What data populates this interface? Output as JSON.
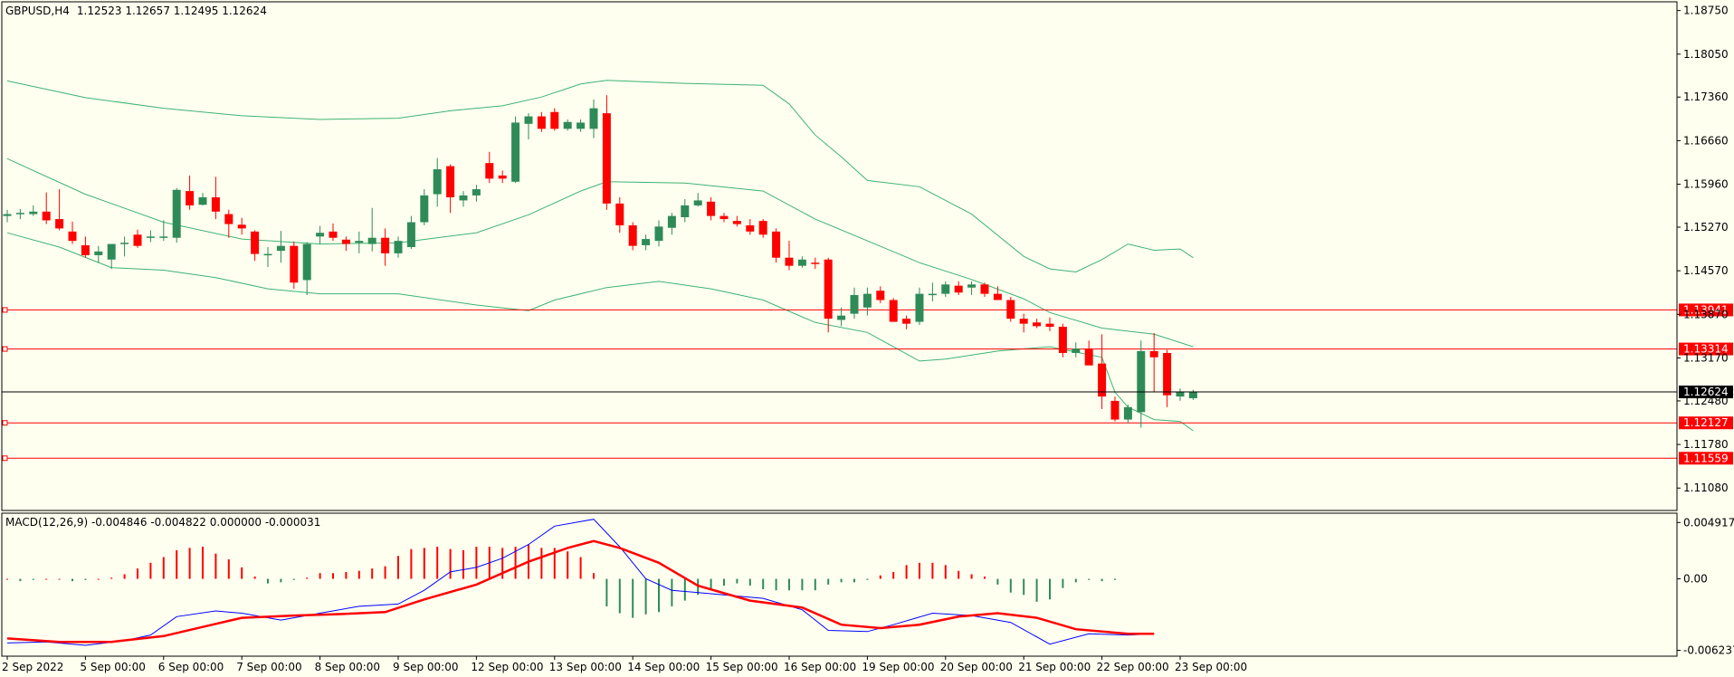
{
  "header": {
    "symbol": "GBPUSD,H4",
    "ohlc": "1.12523 1.12657 1.12495 1.12624"
  },
  "macd_header": "MACD(12,26,9) -0.004846 -0.004822 0.000000 -0.000031",
  "price_axis": {
    "ticks": [
      "1.18750",
      "1.18050",
      "1.17360",
      "1.16660",
      "1.15960",
      "1.15270",
      "1.14570",
      "1.13870",
      "1.13170",
      "1.12480",
      "1.11780",
      "1.11080"
    ],
    "tick_values": [
      1.1875,
      1.1805,
      1.1736,
      1.1666,
      1.1596,
      1.1527,
      1.1457,
      1.1387,
      1.1317,
      1.1248,
      1.1178,
      1.1108
    ],
    "min": 1.1072,
    "max": 1.1889
  },
  "levels": [
    {
      "label": "1.13941",
      "value": 1.13941,
      "color": "#ff0000"
    },
    {
      "label": "1.13314",
      "value": 1.13314,
      "color": "#ff0000"
    },
    {
      "label": "1.12127",
      "value": 1.12127,
      "color": "#ff0000"
    },
    {
      "label": "1.11559",
      "value": 1.11559,
      "color": "#ff0000"
    }
  ],
  "current_price": {
    "label": "1.12624",
    "value": 1.12624
  },
  "macd_axis": {
    "ticks": [
      "0.004917",
      "0.00",
      "-0.006237"
    ],
    "tick_values": [
      0.004917,
      0.0,
      -0.006237
    ],
    "min": -0.00675,
    "max": 0.00573
  },
  "time_axis": [
    "2 Sep 2022",
    "5 Sep 00:00",
    "6 Sep 00:00",
    "7 Sep 00:00",
    "8 Sep 00:00",
    "9 Sep 00:00",
    "12 Sep 00:00",
    "13 Sep 00:00",
    "14 Sep 00:00",
    "15 Sep 00:00",
    "16 Sep 00:00",
    "19 Sep 00:00",
    "20 Sep 00:00",
    "21 Sep 00:00",
    "22 Sep 00:00",
    "23 Sep 00:00"
  ],
  "time_axis_bar_index": [
    0,
    6,
    12,
    18,
    24,
    30,
    36,
    42,
    48,
    54,
    60,
    66,
    72,
    78,
    84,
    90
  ],
  "colors": {
    "background": "#fffff0",
    "bull": "#2e8b57",
    "bear": "#ff0000",
    "bands": "#3cb371",
    "macd_main": "#0000ff",
    "macd_signal": "#ff0000",
    "level_line": "#ff0000",
    "current_line": "#000000"
  },
  "chart_data": {
    "type": "candlestick",
    "series_ohlc": [
      [
        1.1545,
        1.1555,
        1.1535,
        1.1548
      ],
      [
        1.1549,
        1.1556,
        1.154,
        1.155
      ],
      [
        1.1548,
        1.1562,
        1.1545,
        1.1552
      ],
      [
        1.1552,
        1.1583,
        1.1532,
        1.1538
      ],
      [
        1.154,
        1.1588,
        1.1522,
        1.1525
      ],
      [
        1.152,
        1.1536,
        1.15,
        1.1505
      ],
      [
        1.1498,
        1.1512,
        1.1478,
        1.1482
      ],
      [
        1.1482,
        1.1497,
        1.147,
        1.1488
      ],
      [
        1.1475,
        1.1498,
        1.146,
        1.15
      ],
      [
        1.15,
        1.1512,
        1.148,
        1.1502
      ],
      [
        1.1515,
        1.1523,
        1.1494,
        1.1497
      ],
      [
        1.151,
        1.1522,
        1.1503,
        1.1512
      ],
      [
        1.151,
        1.1538,
        1.1505,
        1.1512
      ],
      [
        1.151,
        1.159,
        1.1502,
        1.1587
      ],
      [
        1.1585,
        1.161,
        1.1555,
        1.1562
      ],
      [
        1.1563,
        1.1582,
        1.1562,
        1.1575
      ],
      [
        1.1575,
        1.1608,
        1.154,
        1.1552
      ],
      [
        1.1548,
        1.1555,
        1.151,
        1.1532
      ],
      [
        1.1531,
        1.1542,
        1.1515,
        1.1525
      ],
      [
        1.152,
        1.1522,
        1.1473,
        1.1484
      ],
      [
        1.1484,
        1.1495,
        1.1463,
        1.1484
      ],
      [
        1.1489,
        1.1521,
        1.147,
        1.1497
      ],
      [
        1.1497,
        1.1504,
        1.1428,
        1.1438
      ],
      [
        1.1442,
        1.1503,
        1.1418,
        1.15
      ],
      [
        1.1512,
        1.1529,
        1.15,
        1.1518
      ],
      [
        1.152,
        1.1533,
        1.1505,
        1.151
      ],
      [
        1.1507,
        1.1512,
        1.1489,
        1.15
      ],
      [
        1.1502,
        1.152,
        1.1485,
        1.1505
      ],
      [
        1.15,
        1.1558,
        1.1488,
        1.151
      ],
      [
        1.151,
        1.1525,
        1.1465,
        1.1485
      ],
      [
        1.1485,
        1.1512,
        1.1478,
        1.1505
      ],
      [
        1.1495,
        1.1545,
        1.1492,
        1.1535
      ],
      [
        1.1535,
        1.1588,
        1.153,
        1.1578
      ],
      [
        1.158,
        1.1638,
        1.156,
        1.162
      ],
      [
        1.1625,
        1.1628,
        1.155,
        1.1575
      ],
      [
        1.157,
        1.1585,
        1.156,
        1.1578
      ],
      [
        1.1578,
        1.1595,
        1.1568,
        1.1588
      ],
      [
        1.163,
        1.1648,
        1.1598,
        1.1605
      ],
      [
        1.161,
        1.1618,
        1.1598,
        1.1605
      ],
      [
        1.16,
        1.1705,
        1.1598,
        1.1695
      ],
      [
        1.1693,
        1.171,
        1.1668,
        1.1705
      ],
      [
        1.1705,
        1.1712,
        1.168,
        1.1685
      ],
      [
        1.1712,
        1.1718,
        1.1682,
        1.1685
      ],
      [
        1.1685,
        1.17,
        1.1682,
        1.1696
      ],
      [
        1.1685,
        1.17,
        1.168,
        1.1695
      ],
      [
        1.1685,
        1.1732,
        1.167,
        1.1718
      ],
      [
        1.171,
        1.1739,
        1.1555,
        1.1565
      ],
      [
        1.1565,
        1.1575,
        1.1518,
        1.153
      ],
      [
        1.153,
        1.1535,
        1.149,
        1.1497
      ],
      [
        1.1498,
        1.1515,
        1.149,
        1.1508
      ],
      [
        1.1505,
        1.1538,
        1.1496,
        1.1528
      ],
      [
        1.1526,
        1.155,
        1.1515,
        1.1545
      ],
      [
        1.1543,
        1.1572,
        1.1535,
        1.1562
      ],
      [
        1.1562,
        1.1582,
        1.156,
        1.157
      ],
      [
        1.1568,
        1.1575,
        1.1538,
        1.1545
      ],
      [
        1.1545,
        1.155,
        1.1535,
        1.154
      ],
      [
        1.1537,
        1.1545,
        1.1528,
        1.1532
      ],
      [
        1.153,
        1.154,
        1.1515,
        1.152
      ],
      [
        1.1537,
        1.154,
        1.151,
        1.1515
      ],
      [
        1.152,
        1.1525,
        1.147,
        1.1478
      ],
      [
        1.1478,
        1.1505,
        1.1458,
        1.1465
      ],
      [
        1.1465,
        1.148,
        1.1462,
        1.1475
      ],
      [
        1.147,
        1.1478,
        1.146,
        1.1468
      ],
      [
        1.1475,
        1.1478,
        1.1358,
        1.138
      ],
      [
        1.1378,
        1.1398,
        1.1368,
        1.1385
      ],
      [
        1.1388,
        1.143,
        1.138,
        1.1418
      ],
      [
        1.1398,
        1.143,
        1.1385,
        1.142
      ],
      [
        1.1425,
        1.1432,
        1.1405,
        1.141
      ],
      [
        1.141,
        1.1413,
        1.138,
        1.1375
      ],
      [
        1.138,
        1.1385,
        1.1363,
        1.1372
      ],
      [
        1.1375,
        1.143,
        1.137,
        1.142
      ],
      [
        1.1418,
        1.1438,
        1.1408,
        1.142
      ],
      [
        1.142,
        1.144,
        1.1415,
        1.1435
      ],
      [
        1.1433,
        1.144,
        1.1418,
        1.1422
      ],
      [
        1.143,
        1.144,
        1.1418,
        1.1435
      ],
      [
        1.1435,
        1.1438,
        1.1415,
        1.142
      ],
      [
        1.142,
        1.1432,
        1.141,
        1.141
      ],
      [
        1.141,
        1.1415,
        1.1375,
        1.138
      ],
      [
        1.138,
        1.1388,
        1.1358,
        1.1372
      ],
      [
        1.1374,
        1.138,
        1.1365,
        1.1368
      ],
      [
        1.1372,
        1.1382,
        1.136,
        1.1367
      ],
      [
        1.1367,
        1.1372,
        1.1318,
        1.1325
      ],
      [
        1.1325,
        1.1342,
        1.1318,
        1.1332
      ],
      [
        1.1332,
        1.1345,
        1.1308,
        1.1305
      ],
      [
        1.1308,
        1.1355,
        1.1235,
        1.1255
      ],
      [
        1.1248,
        1.1255,
        1.1215,
        1.1218
      ],
      [
        1.1218,
        1.1242,
        1.1212,
        1.1238
      ],
      [
        1.123,
        1.1345,
        1.1205,
        1.1328
      ],
      [
        1.1328,
        1.1357,
        1.1262,
        1.1318
      ],
      [
        1.1325,
        1.133,
        1.1238,
        1.1257
      ],
      [
        1.1255,
        1.1268,
        1.1248,
        1.1262
      ],
      [
        1.12523,
        1.12657,
        1.12495,
        1.12624
      ]
    ],
    "bb_upper": [
      [
        0,
        1.1762
      ],
      [
        6,
        1.1735
      ],
      [
        12,
        1.1718
      ],
      [
        18,
        1.1706
      ],
      [
        24,
        1.17
      ],
      [
        30,
        1.1702
      ],
      [
        34,
        1.1714
      ],
      [
        38,
        1.1722
      ],
      [
        41,
        1.1736
      ],
      [
        44,
        1.1757
      ],
      [
        46,
        1.1763
      ],
      [
        52,
        1.1758
      ],
      [
        58,
        1.1755
      ],
      [
        60,
        1.1725
      ],
      [
        62,
        1.1675
      ],
      [
        64,
        1.164
      ],
      [
        66,
        1.1602
      ],
      [
        70,
        1.1592
      ],
      [
        74,
        1.1548
      ],
      [
        78,
        1.148
      ],
      [
        80,
        1.146
      ],
      [
        82,
        1.1455
      ],
      [
        84,
        1.1475
      ],
      [
        86,
        1.15
      ],
      [
        88,
        1.149
      ],
      [
        90,
        1.1492
      ],
      [
        91,
        1.1478
      ]
    ],
    "bb_middle": [
      [
        0,
        1.1637
      ],
      [
        6,
        1.158
      ],
      [
        12,
        1.1535
      ],
      [
        18,
        1.1508
      ],
      [
        24,
        1.15
      ],
      [
        30,
        1.1502
      ],
      [
        36,
        1.1518
      ],
      [
        40,
        1.1547
      ],
      [
        44,
        1.1585
      ],
      [
        46,
        1.16
      ],
      [
        52,
        1.1598
      ],
      [
        58,
        1.1585
      ],
      [
        62,
        1.154
      ],
      [
        66,
        1.1505
      ],
      [
        70,
        1.147
      ],
      [
        74,
        1.1443
      ],
      [
        78,
        1.1412
      ],
      [
        80,
        1.139
      ],
      [
        84,
        1.1365
      ],
      [
        86,
        1.136
      ],
      [
        88,
        1.1355
      ],
      [
        91,
        1.1335
      ]
    ],
    "bb_lower": [
      [
        0,
        1.1518
      ],
      [
        4,
        1.1495
      ],
      [
        8,
        1.1462
      ],
      [
        12,
        1.1458
      ],
      [
        16,
        1.1446
      ],
      [
        20,
        1.1428
      ],
      [
        24,
        1.142
      ],
      [
        30,
        1.142
      ],
      [
        36,
        1.1402
      ],
      [
        40,
        1.1393
      ],
      [
        42,
        1.141
      ],
      [
        46,
        1.143
      ],
      [
        50,
        1.144
      ],
      [
        54,
        1.1428
      ],
      [
        58,
        1.141
      ],
      [
        62,
        1.1374
      ],
      [
        66,
        1.1358
      ],
      [
        70,
        1.1312
      ],
      [
        72,
        1.1315
      ],
      [
        76,
        1.1328
      ],
      [
        80,
        1.1335
      ],
      [
        84,
        1.1318
      ],
      [
        85,
        1.1262
      ],
      [
        86,
        1.1238
      ],
      [
        88,
        1.1218
      ],
      [
        90,
        1.1215
      ],
      [
        91,
        1.12
      ]
    ],
    "macd_histogram": [
      0.0,
      -0.0002,
      -0.0001,
      0.0,
      0.0,
      -0.0002,
      -0.0001,
      0.0,
      0.0001,
      0.0004,
      0.0009,
      0.0014,
      0.0019,
      0.0025,
      0.0027,
      0.0028,
      0.0022,
      0.0017,
      0.001,
      0.0002,
      -0.0004,
      -0.0003,
      -0.0001,
      0.0001,
      0.0005,
      0.0005,
      0.0006,
      0.0007,
      0.0009,
      0.0011,
      0.002,
      0.0026,
      0.0027,
      0.0028,
      0.0026,
      0.0025,
      0.0028,
      0.0028,
      0.0027,
      0.0028,
      0.003,
      0.0027,
      0.0027,
      0.0024,
      0.0019,
      0.0005,
      -0.0024,
      -0.003,
      -0.0034,
      -0.0031,
      -0.0029,
      -0.0024,
      -0.0019,
      -0.0014,
      -0.0009,
      -0.0006,
      -0.0004,
      -0.0006,
      -0.0009,
      -0.001,
      -0.001,
      -0.001,
      -0.001,
      -0.0005,
      -0.0003,
      -0.0003,
      -0.0001,
      0.0003,
      0.0006,
      0.0012,
      0.0014,
      0.0014,
      0.0012,
      0.0007,
      0.0004,
      0.0002,
      -0.0005,
      -0.0012,
      -0.0014,
      -0.002,
      -0.0018,
      -0.0008,
      -0.0003,
      -0.0001,
      -0.0002,
      -0.0001
    ],
    "macd_main": [
      [
        0,
        -0.0056
      ],
      [
        3,
        -0.0055
      ],
      [
        6,
        -0.0058
      ],
      [
        9,
        -0.0054
      ],
      [
        11,
        -0.0049
      ],
      [
        13,
        -0.0033
      ],
      [
        16,
        -0.0028
      ],
      [
        18,
        -0.003
      ],
      [
        21,
        -0.0036
      ],
      [
        24,
        -0.003
      ],
      [
        27,
        -0.0024
      ],
      [
        30,
        -0.0022
      ],
      [
        32,
        -0.001
      ],
      [
        34,
        0.0006
      ],
      [
        36,
        0.001
      ],
      [
        38,
        0.0018
      ],
      [
        40,
        0.003
      ],
      [
        42,
        0.0046
      ],
      [
        45,
        0.0052
      ],
      [
        47,
        0.0028
      ],
      [
        49,
        0.0
      ],
      [
        51,
        -0.001
      ],
      [
        54,
        -0.0013
      ],
      [
        58,
        -0.0017
      ],
      [
        61,
        -0.0027
      ],
      [
        63,
        -0.0045
      ],
      [
        66,
        -0.0046
      ],
      [
        68,
        -0.004
      ],
      [
        71,
        -0.003
      ],
      [
        74,
        -0.0032
      ],
      [
        77,
        -0.0038
      ],
      [
        80,
        -0.0057
      ],
      [
        83,
        -0.0048
      ],
      [
        86,
        -0.0049
      ],
      [
        88,
        -0.0048
      ]
    ],
    "macd_signal": [
      [
        0,
        -0.0052
      ],
      [
        4,
        -0.0055
      ],
      [
        8,
        -0.0055
      ],
      [
        12,
        -0.005
      ],
      [
        15,
        -0.0042
      ],
      [
        18,
        -0.0034
      ],
      [
        22,
        -0.0032
      ],
      [
        25,
        -0.0031
      ],
      [
        29,
        -0.0029
      ],
      [
        32,
        -0.0018
      ],
      [
        36,
        -0.0005
      ],
      [
        40,
        0.0015
      ],
      [
        43,
        0.0027
      ],
      [
        45,
        0.0033
      ],
      [
        47,
        0.0027
      ],
      [
        50,
        0.0014
      ],
      [
        53,
        -0.0006
      ],
      [
        57,
        -0.0019
      ],
      [
        61,
        -0.0025
      ],
      [
        64,
        -0.004
      ],
      [
        67,
        -0.0043
      ],
      [
        70,
        -0.004
      ],
      [
        73,
        -0.0033
      ],
      [
        76,
        -0.003
      ],
      [
        79,
        -0.0034
      ],
      [
        82,
        -0.0044
      ],
      [
        86,
        -0.0048
      ],
      [
        88,
        -0.0048
      ]
    ]
  }
}
